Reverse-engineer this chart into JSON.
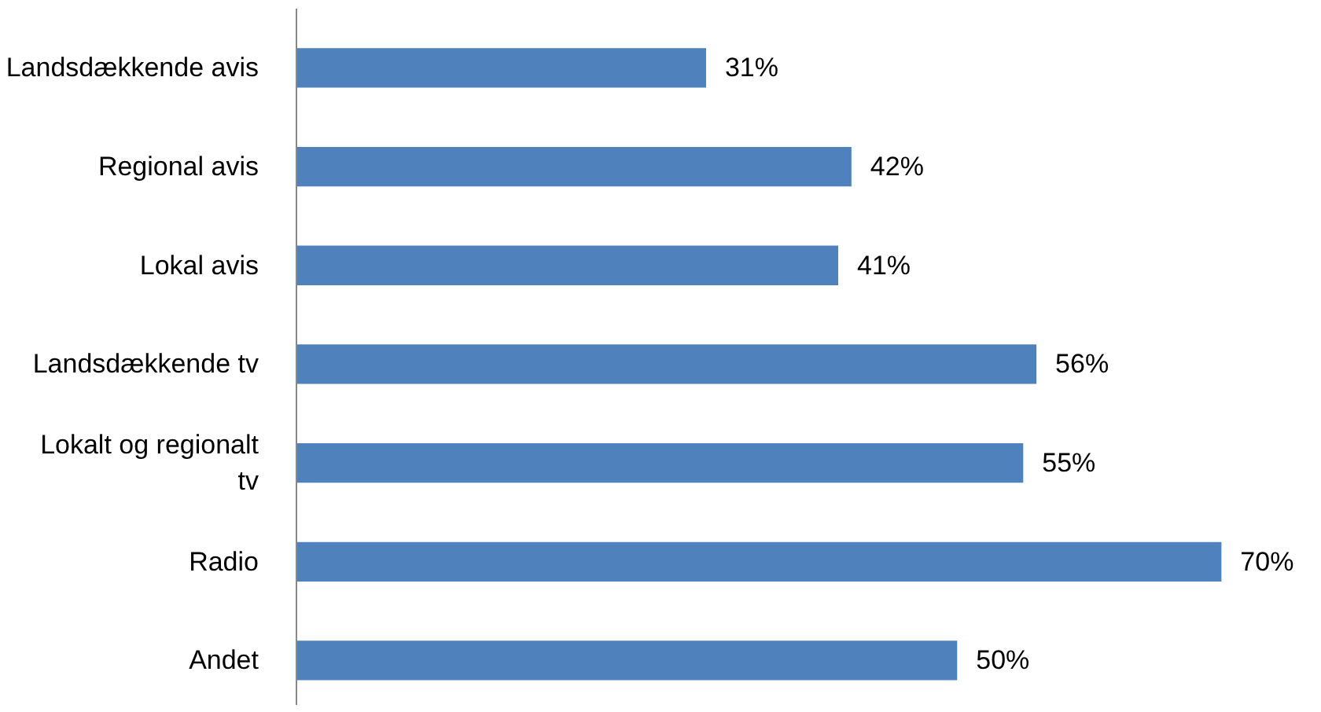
{
  "chart_data": {
    "type": "bar",
    "orientation": "horizontal",
    "categories": [
      "Landsdækkende avis",
      "Regional avis",
      "Lokal avis",
      "Landsdækkende tv",
      "Lokalt og regionalt tv",
      "Radio",
      "Andet"
    ],
    "values": [
      31,
      42,
      41,
      56,
      55,
      70,
      50
    ],
    "value_labels": [
      "31%",
      "42%",
      "41%",
      "56%",
      "55%",
      "70%",
      "50%"
    ],
    "color": "#4f81bd",
    "grid": false
  }
}
